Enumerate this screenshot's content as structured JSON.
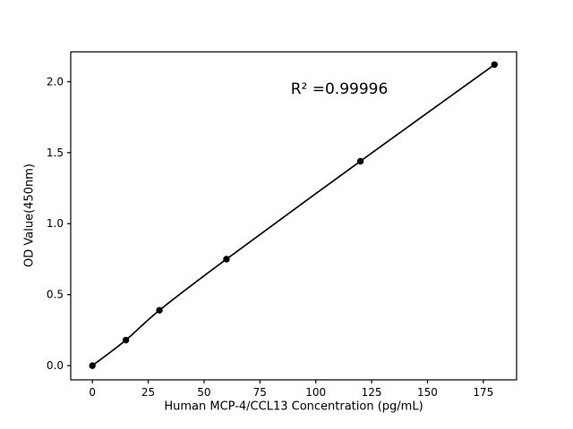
{
  "figure": {
    "background": "#ffffff",
    "foreground": "#000000"
  },
  "chart_data": {
    "type": "line",
    "title": "",
    "xlabel": "Human MCP-4/CCL13 Concentration (pg/mL)",
    "ylabel": "OD Value(450nm)",
    "series": [
      {
        "name": "standard curve",
        "x": [
          0,
          15,
          30,
          60,
          120,
          180
        ],
        "y": [
          0.0,
          0.18,
          0.39,
          0.75,
          1.44,
          2.12
        ],
        "color": "#000000",
        "marker": "circle",
        "marker_radius": 3.7,
        "line_width": 1.7,
        "smooth": true
      }
    ],
    "xlim": [
      -9.7,
      189.9
    ],
    "ylim": [
      -0.1,
      2.21
    ],
    "xticks": [
      0,
      25,
      50,
      75,
      100,
      125,
      150,
      175
    ],
    "xtick_labels": [
      "0",
      "25",
      "50",
      "75",
      "100",
      "125",
      "150",
      "175"
    ],
    "yticks": [
      0.0,
      0.5,
      1.0,
      1.5,
      2.0
    ],
    "ytick_labels": [
      "0.0",
      "0.5",
      "1.0",
      "1.5",
      "2.0"
    ],
    "grid": false,
    "legend": null,
    "annotation": {
      "text": "R² =0.99996",
      "x": 110.4,
      "y": 1.95
    }
  }
}
